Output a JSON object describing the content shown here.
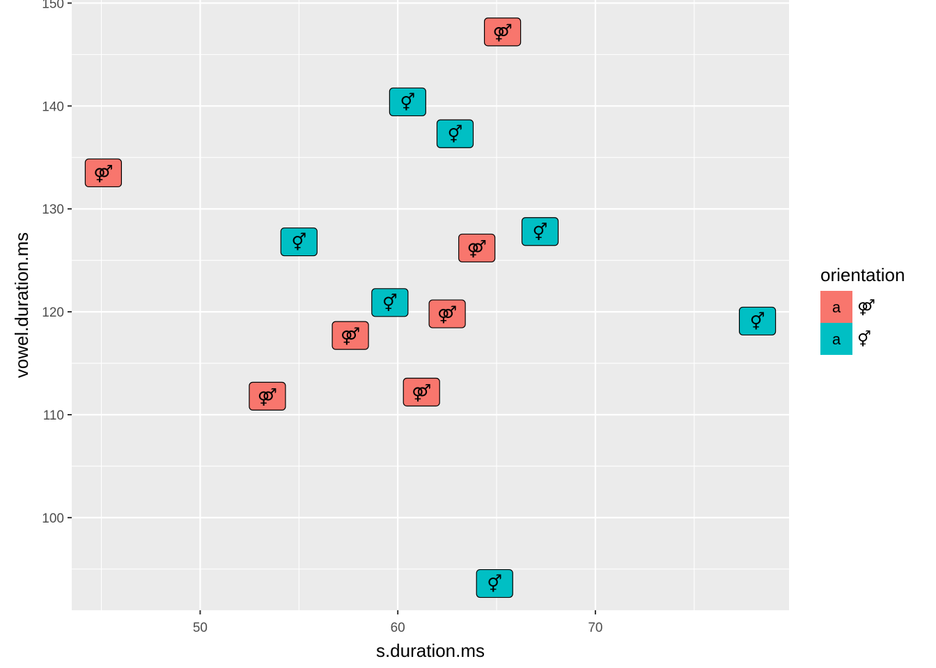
{
  "chart_data": {
    "type": "scatter",
    "xlabel": "s.duration.ms",
    "ylabel": "vowel.duration.ms",
    "xlim": [
      43.5,
      79.8
    ],
    "ylim": [
      91.0,
      150.3
    ],
    "x_ticks": [
      50,
      60,
      70
    ],
    "y_ticks": [
      100,
      110,
      120,
      130,
      140,
      150
    ],
    "grid": true,
    "legend_position": "right",
    "legend": {
      "title": "orientation",
      "key_text": "a",
      "entries": [
        {
          "name": "⚤",
          "color": "#F8766D"
        },
        {
          "name": "⚥",
          "color": "#00BFC4"
        }
      ]
    },
    "series": [
      {
        "name": "⚤",
        "color": "#F8766D",
        "points": [
          {
            "x": 65.3,
            "y": 147.2
          },
          {
            "x": 45.1,
            "y": 133.5
          },
          {
            "x": 64.0,
            "y": 126.2
          },
          {
            "x": 62.5,
            "y": 119.8
          },
          {
            "x": 57.6,
            "y": 117.7
          },
          {
            "x": 53.4,
            "y": 111.8
          },
          {
            "x": 61.2,
            "y": 112.2
          }
        ]
      },
      {
        "name": "⚥",
        "color": "#00BFC4",
        "points": [
          {
            "x": 60.5,
            "y": 140.4
          },
          {
            "x": 62.9,
            "y": 137.3
          },
          {
            "x": 55.0,
            "y": 126.8
          },
          {
            "x": 67.2,
            "y": 127.8
          },
          {
            "x": 59.6,
            "y": 120.9
          },
          {
            "x": 78.2,
            "y": 119.1
          },
          {
            "x": 64.9,
            "y": 93.6
          }
        ]
      }
    ]
  }
}
